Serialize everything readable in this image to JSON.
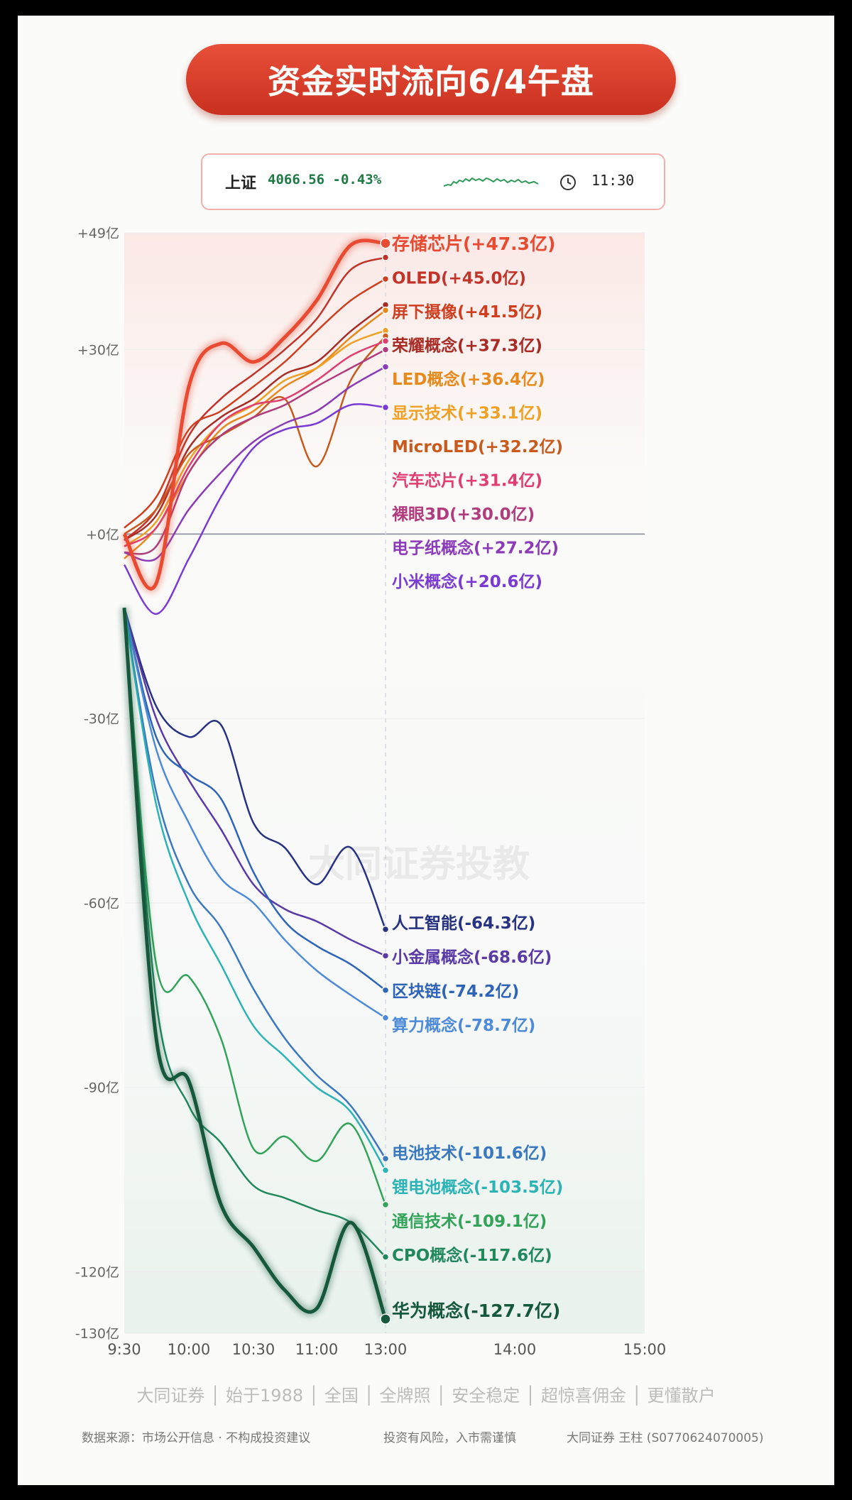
{
  "header": {
    "title": "资金实时流向6/4午盘",
    "index_name": "上证",
    "index_value": "4066.56 -0.43%",
    "time": "11:30"
  },
  "chart_data": {
    "type": "line",
    "ylim": [
      -130,
      49
    ],
    "y_ticks": [
      49,
      30,
      0,
      -30,
      -60,
      -90,
      -120,
      -130
    ],
    "y_tick_labels": [
      "+49亿",
      "+30亿",
      "+0亿",
      "-30亿",
      "-60亿",
      "-90亿",
      "-120亿",
      "-130亿"
    ],
    "x_ticks": [
      "9:30",
      "10:00",
      "10:30",
      "11:00",
      "13:00",
      "14:00",
      "15:00"
    ],
    "x_values": [
      "9:30",
      "9:45",
      "10:00",
      "10:15",
      "10:30",
      "10:45",
      "11:00",
      "11:15",
      "13:00"
    ],
    "watermark": "大同证券投教",
    "series": [
      {
        "name": "存储芯片",
        "label": "存储芯片(+47.3亿)",
        "value": 47.3,
        "color": "#e84a32",
        "values": [
          0,
          -8,
          24,
          31,
          28,
          32,
          38,
          47,
          47.3
        ],
        "emphasis": true
      },
      {
        "name": "OLED",
        "label": "OLED(+45.0亿)",
        "value": 45.0,
        "color": "#c2332a",
        "values": [
          -1,
          4,
          16,
          22,
          26,
          30,
          35,
          43,
          45.0
        ]
      },
      {
        "name": "屏下摄像",
        "label": "屏下摄像(+41.5亿)",
        "value": 41.5,
        "color": "#cf3f1f",
        "values": [
          1,
          6,
          17,
          20,
          24,
          28,
          33,
          38,
          41.5
        ]
      },
      {
        "name": "荣耀概念",
        "label": "荣耀概念(+37.3亿)",
        "value": 37.3,
        "color": "#a82c25",
        "values": [
          -1,
          3,
          14,
          19,
          22,
          26,
          28,
          33,
          37.3
        ]
      },
      {
        "name": "LED概念",
        "label": "LED概念(+36.4亿)",
        "value": 36.4,
        "color": "#e8891c",
        "values": [
          -4,
          1,
          10,
          17,
          20,
          24,
          27,
          32,
          36.4
        ]
      },
      {
        "name": "显示技术",
        "label": "显示技术(+33.1亿)",
        "value": 33.1,
        "color": "#f0a024",
        "values": [
          -2,
          2,
          12,
          18,
          21,
          25,
          27,
          31,
          33.1
        ]
      },
      {
        "name": "MicroLED",
        "label": "MicroLED(+32.2亿)",
        "value": 32.2,
        "color": "#c95a1e",
        "values": [
          0,
          4,
          13,
          16,
          19,
          22,
          11,
          25,
          32.2
        ]
      },
      {
        "name": "汽车芯片",
        "label": "汽车芯片(+31.4亿)",
        "value": 31.4,
        "color": "#e13d70",
        "values": [
          -2,
          1,
          11,
          18,
          21,
          22,
          25,
          29,
          31.4
        ]
      },
      {
        "name": "裸眼3D",
        "label": "裸眼3D(+30.0亿)",
        "value": 30.0,
        "color": "#b13b7c",
        "values": [
          -3,
          -2,
          10,
          16,
          19,
          21,
          24,
          27,
          30.0
        ]
      },
      {
        "name": "电子纸概念",
        "label": "电子纸概念(+27.2亿)",
        "value": 27.2,
        "color": "#8b3ab8",
        "values": [
          -3,
          -4,
          4,
          10,
          15,
          18,
          20,
          24,
          27.2
        ]
      },
      {
        "name": "小米概念",
        "label": "小米概念(+20.6亿)",
        "value": 20.6,
        "color": "#7a3ad4",
        "values": [
          -5,
          -13,
          -4,
          6,
          14,
          17,
          18,
          21,
          20.6
        ]
      },
      {
        "name": "人工智能",
        "label": "人工智能(-64.3亿)",
        "value": -64.3,
        "color": "#273282",
        "values": [
          -12,
          -28,
          -33,
          -31,
          -47,
          -51,
          -57,
          -51,
          -64.3
        ]
      },
      {
        "name": "小金属概念",
        "label": "小金属概念(-68.6亿)",
        "value": -68.6,
        "color": "#5a3aa6",
        "values": [
          -12,
          -30,
          -40,
          -48,
          -57,
          -61,
          -63,
          -66,
          -68.6
        ]
      },
      {
        "name": "区块链",
        "label": "区块链(-74.2亿)",
        "value": -74.2,
        "color": "#2e64b8",
        "values": [
          -12,
          -33,
          -39,
          -43,
          -55,
          -63,
          -67,
          -70,
          -74.2
        ]
      },
      {
        "name": "算力概念",
        "label": "算力概念(-78.7亿)",
        "value": -78.7,
        "color": "#4d8bd8",
        "values": [
          -12,
          -35,
          -47,
          -56,
          -60,
          -66,
          -71,
          -75,
          -78.7
        ]
      },
      {
        "name": "电池技术",
        "label": "电池技术(-101.6亿)",
        "value": -101.6,
        "color": "#3a78c0",
        "values": [
          -12,
          -42,
          -57,
          -64,
          -74,
          -82,
          -88,
          -93,
          -101.6
        ]
      },
      {
        "name": "锂电池概念",
        "label": "锂电池概念(-103.5亿)",
        "value": -103.5,
        "color": "#2bb3b5",
        "values": [
          -12,
          -44,
          -60,
          -70,
          -80,
          -85,
          -90,
          -94,
          -103.5
        ]
      },
      {
        "name": "通信技术",
        "label": "通信技术(-109.1亿)",
        "value": -109.1,
        "color": "#33a35a",
        "values": [
          -12,
          -70,
          -72,
          -82,
          -100,
          -98,
          -102,
          -96,
          -109.1
        ]
      },
      {
        "name": "CPO概念",
        "label": "CPO概念(-117.6亿)",
        "value": -117.6,
        "color": "#21885e",
        "values": [
          -12,
          -76,
          -93,
          -99,
          -106,
          -108,
          -110,
          -112,
          -117.6
        ]
      },
      {
        "name": "华为概念",
        "label": "华为概念(-127.7亿)",
        "value": -127.7,
        "color": "#16583c",
        "values": [
          -12,
          -82,
          -89,
          -109,
          -116,
          -123,
          -126,
          -112,
          -127.7
        ],
        "emphasis": true
      }
    ]
  },
  "footer": {
    "slogan": "大同证券 │ 始于1988 │ 全国 │ 全牌照 │ 安全稳定 │ 超惊喜佣金 │ 更懂散户",
    "source": "数据来源：市场公开信息 · 不构成投资建议",
    "risk": "投资有风险，入市需谨慎",
    "advisor": "大同证券 王柱 (S0770624070005)"
  }
}
